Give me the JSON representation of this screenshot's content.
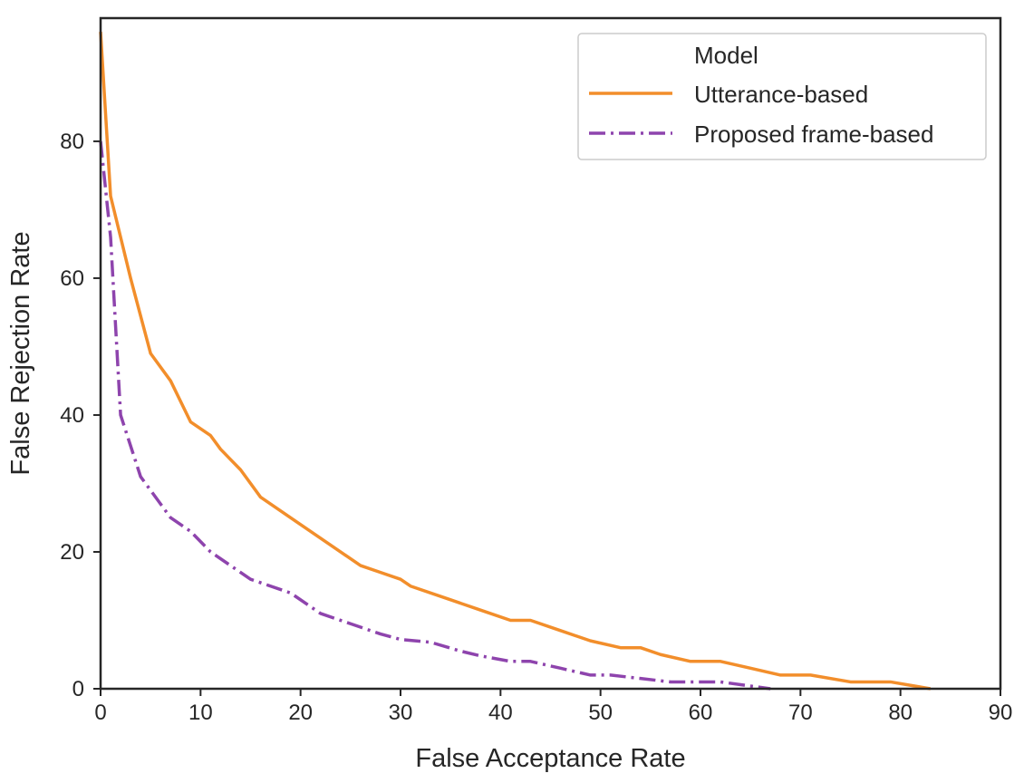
{
  "chart_data": {
    "type": "line",
    "title": "",
    "xlabel": "False Acceptance Rate",
    "ylabel": "False Rejection Rate",
    "xlim": [
      0,
      90
    ],
    "ylim": [
      0,
      98
    ],
    "xticks": [
      0,
      10,
      20,
      30,
      40,
      50,
      60,
      70,
      80,
      90
    ],
    "yticks": [
      0,
      20,
      40,
      60,
      80
    ],
    "grid": false,
    "legend": {
      "title": "Model",
      "placement": "top-right"
    },
    "series": [
      {
        "name": "Utterance-based",
        "color": "#f28e2b",
        "line_style": "solid",
        "x": [
          0,
          1,
          3,
          5,
          7,
          9,
          11,
          12,
          14,
          16,
          20,
          23,
          26,
          28,
          30,
          31,
          35,
          38,
          41,
          43,
          46,
          49,
          52,
          54,
          56,
          59,
          62,
          65,
          68,
          71,
          75,
          79,
          83
        ],
        "y": [
          96,
          72,
          60,
          49,
          45,
          39,
          37,
          35,
          32,
          28,
          24,
          21,
          18,
          17,
          16,
          15,
          13,
          11.5,
          10,
          10,
          8.5,
          7,
          6,
          6,
          5,
          4,
          4,
          3,
          2,
          2,
          1,
          1,
          0
        ]
      },
      {
        "name": "Proposed frame-based",
        "color": "#8e44ad",
        "line_style": "dashdot",
        "x": [
          0,
          1,
          2,
          4,
          6,
          7,
          9,
          11,
          13,
          15,
          17,
          19,
          22,
          25,
          28,
          30,
          33,
          36,
          38,
          41,
          43,
          46,
          49,
          51,
          54,
          57,
          59,
          62,
          65,
          67
        ],
        "y": [
          80,
          66,
          40,
          31,
          27,
          25,
          23,
          20,
          18,
          16,
          15,
          14,
          11,
          9.5,
          8,
          7.2,
          6.8,
          5.5,
          4.8,
          4,
          4,
          3,
          2,
          2,
          1.5,
          1,
          1,
          1,
          0.4,
          0
        ]
      }
    ]
  }
}
